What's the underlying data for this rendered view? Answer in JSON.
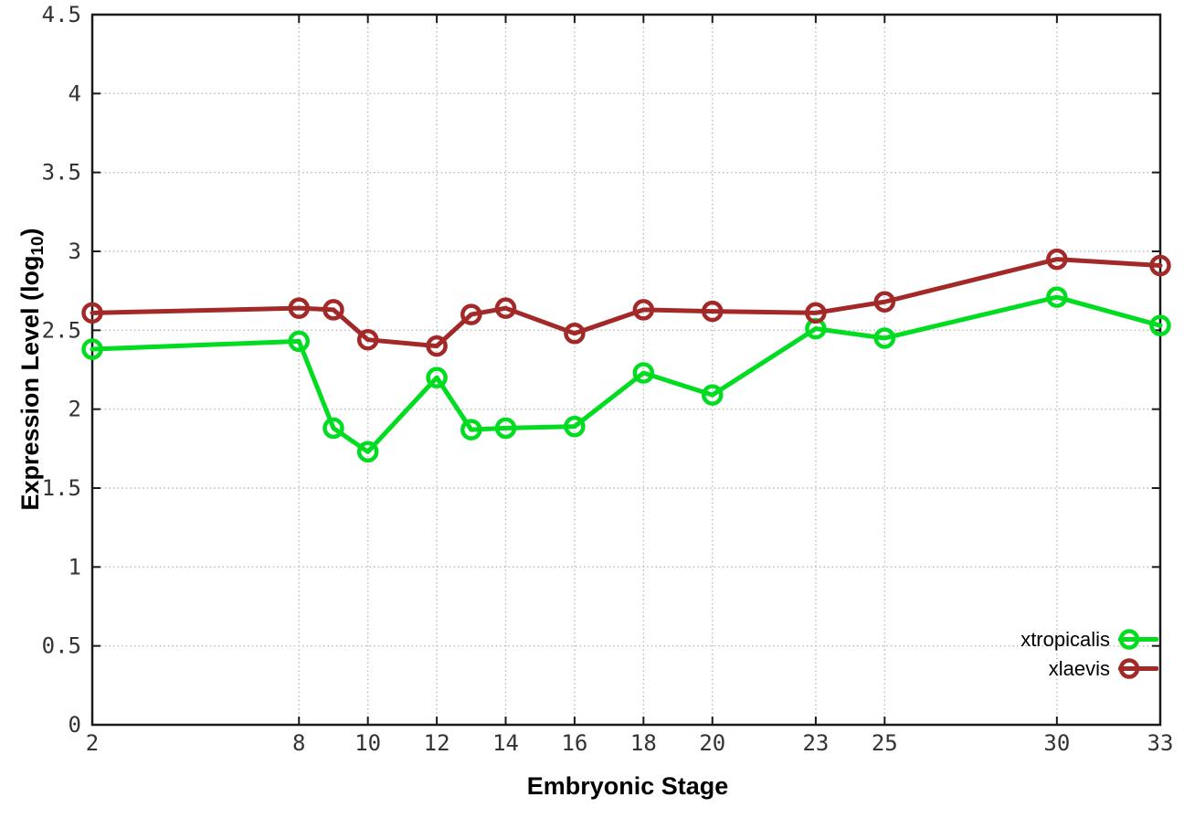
{
  "chart_data": {
    "type": "line",
    "title": "",
    "xlabel": "Embryonic Stage",
    "ylabel": "Expression Level (log10)",
    "ylabel_parts": {
      "pre": "Expression Level (log",
      "sub": "10",
      "post": ")"
    },
    "x": [
      2,
      8,
      9,
      10,
      12,
      13,
      14,
      16,
      18,
      20,
      23,
      25,
      30,
      33
    ],
    "series": [
      {
        "name": "xtropicalis",
        "color": "#00dc20",
        "marker": "open-circle",
        "values": [
          2.38,
          2.43,
          1.88,
          1.73,
          2.2,
          1.87,
          1.88,
          1.89,
          2.23,
          2.09,
          2.51,
          2.45,
          2.71,
          2.53
        ]
      },
      {
        "name": "xlaevis",
        "color": "#a32929",
        "marker": "open-circle",
        "values": [
          2.61,
          2.64,
          2.63,
          2.44,
          2.4,
          2.6,
          2.64,
          2.48,
          2.63,
          2.62,
          2.61,
          2.68,
          2.95,
          2.91
        ]
      }
    ],
    "xlim": [
      2,
      33
    ],
    "ylim": [
      0,
      4.5
    ],
    "xticks": {
      "values": [
        2,
        8,
        10,
        12,
        14,
        16,
        18,
        20,
        23,
        25,
        30,
        33
      ],
      "labels": [
        "2",
        "8",
        "10",
        "12",
        "14",
        "16",
        "18",
        "20",
        "23",
        "25",
        "30",
        "33"
      ]
    },
    "yticks": {
      "values": [
        0,
        0.5,
        1,
        1.5,
        2,
        2.5,
        3,
        3.5,
        4,
        4.5
      ],
      "labels": [
        "0",
        "0.5",
        "1",
        "1.5",
        "2",
        "2.5",
        "3",
        "3.5",
        "4",
        "4.5"
      ]
    },
    "grid": true,
    "legend_position": "bottom-right",
    "colors": {
      "grid": "#b5b5b5",
      "axis": "#1a1a1a",
      "tick_text": "#333333"
    }
  }
}
